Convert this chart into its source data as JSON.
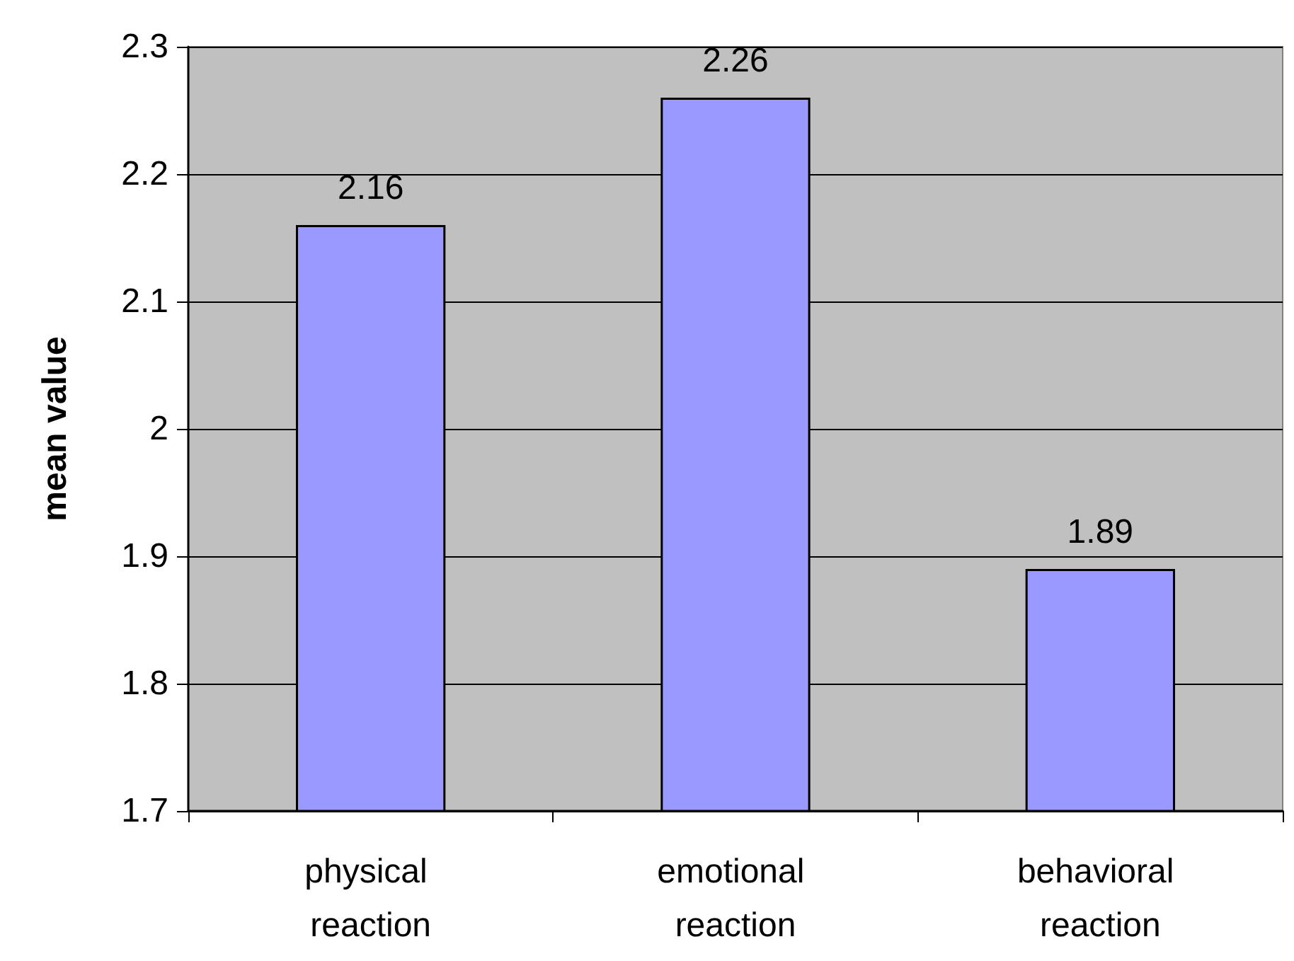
{
  "chart_data": {
    "type": "bar",
    "ylabel": "mean value",
    "categories": [
      "physical reaction",
      "emotional reaction",
      "behavioral reaction"
    ],
    "values": [
      2.16,
      2.26,
      1.89
    ],
    "color": "#9999ff",
    "ylim": [
      1.7,
      2.3
    ],
    "yticks": [
      1.7,
      1.8,
      1.9,
      2,
      2.1,
      2.2,
      2.3
    ],
    "grid": "y",
    "data_labels": true
  }
}
